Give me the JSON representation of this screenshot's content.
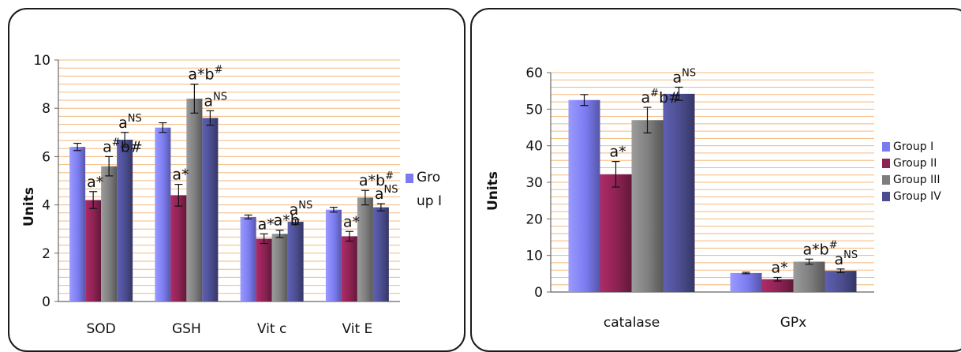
{
  "chart_data": [
    {
      "type": "bar",
      "ylabel": "Units",
      "ylim": [
        0,
        10
      ],
      "yticks": [
        "0",
        "2",
        "4",
        "6",
        "8",
        "10"
      ],
      "categories": [
        "SOD",
        "GSH",
        "Vit c",
        "Vit E"
      ],
      "grid": true,
      "legend_items": [
        {
          "label": "Gro up I",
          "color": "#7b7bf0"
        }
      ],
      "series": [
        {
          "name": "Group I",
          "color": "#7b7bf0",
          "values": [
            6.4,
            7.2,
            3.5,
            3.8
          ],
          "errors": [
            0.15,
            0.2,
            0.08,
            0.1
          ]
        },
        {
          "name": "Group II",
          "color": "#8b2252",
          "values": [
            4.2,
            4.4,
            2.6,
            2.7
          ],
          "errors": [
            0.35,
            0.45,
            0.2,
            0.2
          ]
        },
        {
          "name": "Group III",
          "color": "#7d7d7d",
          "values": [
            5.6,
            8.4,
            2.8,
            4.3
          ],
          "errors": [
            0.4,
            0.6,
            0.15,
            0.3
          ]
        },
        {
          "name": "Group IV",
          "color": "#4b4d8f",
          "values": [
            6.7,
            7.6,
            3.3,
            3.9
          ],
          "errors": [
            0.3,
            0.3,
            0.1,
            0.15
          ]
        }
      ],
      "annotations": [
        {
          "category": 0,
          "series": 1,
          "text": "a",
          "sup": "",
          "tail": "*"
        },
        {
          "category": 0,
          "series": 2,
          "text": "a",
          "sup": "#",
          "tail": "b#"
        },
        {
          "category": 0,
          "series": 3,
          "text": "a",
          "sup": "NS",
          "tail": ""
        },
        {
          "category": 1,
          "series": 1,
          "text": "a",
          "sup": "",
          "tail": "*"
        },
        {
          "category": 1,
          "series": 2,
          "text": "a*b",
          "sup": "#",
          "tail": ""
        },
        {
          "category": 1,
          "series": 3,
          "text": "a",
          "sup": "NS",
          "tail": ""
        },
        {
          "category": 2,
          "series": 1,
          "text": "a",
          "sup": "",
          "tail": "*"
        },
        {
          "category": 2,
          "series": 2,
          "text": "a*b",
          "sup": "",
          "tail": ""
        },
        {
          "category": 2,
          "series": 3,
          "text": "a",
          "sup": "NS",
          "tail": ""
        },
        {
          "category": 3,
          "series": 1,
          "text": "a",
          "sup": "",
          "tail": "*"
        },
        {
          "category": 3,
          "series": 2,
          "text": "a*b",
          "sup": "#",
          "tail": ""
        },
        {
          "category": 3,
          "series": 3,
          "text": "a",
          "sup": "NS",
          "tail": ""
        }
      ]
    },
    {
      "type": "bar",
      "ylabel": "Units",
      "ylim": [
        0,
        60
      ],
      "yticks": [
        "0",
        "10",
        "20",
        "30",
        "40",
        "50",
        "60"
      ],
      "categories": [
        "catalase",
        "GPx"
      ],
      "grid": true,
      "legend": "right",
      "legend_items": [
        {
          "label": "Group I",
          "color": "#7b7bf0"
        },
        {
          "label": "Group II",
          "color": "#8b2252"
        },
        {
          "label": "Group III",
          "color": "#7d7d7d"
        },
        {
          "label": "Group IV",
          "color": "#4b4d8f"
        }
      ],
      "series": [
        {
          "name": "Group I",
          "color": "#7b7bf0",
          "values": [
            52.5,
            5.2
          ],
          "errors": [
            1.5,
            0.2
          ]
        },
        {
          "name": "Group II",
          "color": "#8b2252",
          "values": [
            32.2,
            3.5
          ],
          "errors": [
            3.5,
            0.5
          ]
        },
        {
          "name": "Group III",
          "color": "#7d7d7d",
          "values": [
            47.0,
            8.3
          ],
          "errors": [
            3.5,
            0.7
          ]
        },
        {
          "name": "Group IV",
          "color": "#4b4d8f",
          "values": [
            54.2,
            5.8
          ],
          "errors": [
            1.8,
            0.5
          ]
        }
      ],
      "annotations": [
        {
          "category": 0,
          "series": 1,
          "text": "a",
          "sup": "",
          "tail": "*"
        },
        {
          "category": 0,
          "series": 2,
          "text": "a",
          "sup": "#",
          "tail": "b#"
        },
        {
          "category": 0,
          "series": 3,
          "text": "a",
          "sup": "NS",
          "tail": ""
        },
        {
          "category": 1,
          "series": 1,
          "text": "a",
          "sup": "",
          "tail": "*"
        },
        {
          "category": 1,
          "series": 2,
          "text": "a*b",
          "sup": "#",
          "tail": ""
        },
        {
          "category": 1,
          "series": 3,
          "text": "a",
          "sup": "NS",
          "tail": ""
        }
      ]
    }
  ]
}
